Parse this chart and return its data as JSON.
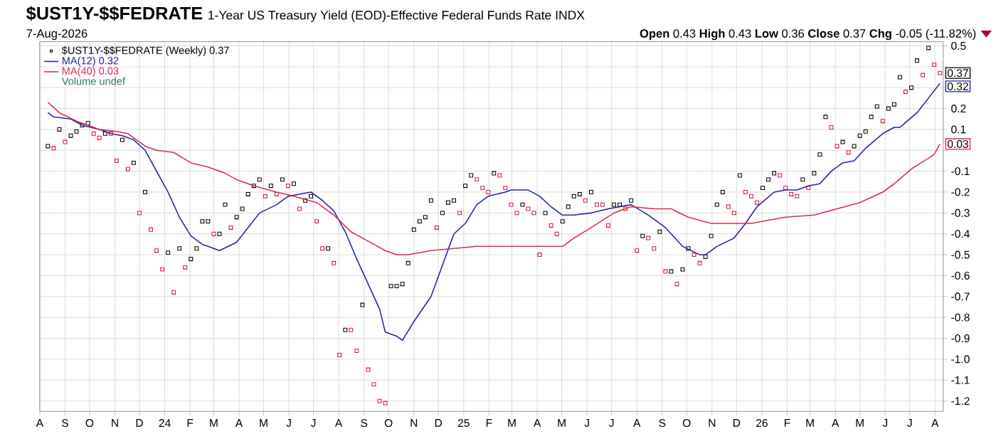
{
  "chart_data": {
    "type": "scatter",
    "title": "$UST1Y-$$FEDRATE",
    "subtitle": "1-Year US Treasury Yield (EOD)-Effective Federal Funds Rate INDX",
    "annotations": [
      "7-Aug-2026",
      "**Open** 0.43 **High** 0.43 **Low** 0.36 **Close** 0.37 **Chg** -0.05 (-11.82%)",
      "Volume undef",
      {
        "text": "0.37",
        "x": "2026-08-07",
        "y": 0.37
      },
      {
        "text": "0.32",
        "x": "2026-08-07",
        "y": 0.32
      },
      {
        "text": "0.03",
        "x": "2026-08-07",
        "y": 0.03
      }
    ],
    "x": [
      "2023-08-11",
      "2023-08-18",
      "2023-08-25",
      "2023-09-01",
      "2023-09-08",
      "2023-09-15",
      "2023-09-22",
      "2023-09-29",
      "2023-10-06",
      "2023-10-13",
      "2023-10-20",
      "2023-10-27",
      "2023-11-03",
      "2023-11-10",
      "2023-11-17",
      "2023-11-24",
      "2023-12-01",
      "2023-12-08",
      "2023-12-15",
      "2023-12-22",
      "2023-12-29",
      "2024-01-05",
      "2024-01-12",
      "2024-01-19",
      "2024-01-26",
      "2024-02-02",
      "2024-02-09",
      "2024-02-16",
      "2024-02-23",
      "2024-03-01",
      "2024-03-08",
      "2024-03-15",
      "2024-03-22",
      "2024-03-29",
      "2024-04-05",
      "2024-04-12",
      "2024-04-19",
      "2024-04-26",
      "2024-05-03",
      "2024-05-10",
      "2024-05-17",
      "2024-05-24",
      "2024-05-31",
      "2024-06-07",
      "2024-06-14",
      "2024-06-21",
      "2024-06-28",
      "2024-07-05",
      "2024-07-12",
      "2024-07-19",
      "2024-07-26",
      "2024-08-02",
      "2024-08-09",
      "2024-08-16",
      "2024-08-23",
      "2024-08-30",
      "2024-09-06",
      "2024-09-13",
      "2024-09-20",
      "2024-09-27",
      "2024-10-04",
      "2024-10-11",
      "2024-10-18",
      "2024-10-25",
      "2024-11-01",
      "2024-11-08",
      "2024-11-15",
      "2024-11-22",
      "2024-11-29",
      "2024-12-06",
      "2024-12-13",
      "2024-12-20",
      "2024-12-27",
      "2025-01-03",
      "2025-01-10",
      "2025-01-17",
      "2025-01-24",
      "2025-01-31",
      "2025-02-07",
      "2025-02-14",
      "2025-02-21",
      "2025-02-28",
      "2025-03-07",
      "2025-03-14",
      "2025-03-21",
      "2025-03-28",
      "2025-04-04",
      "2025-04-11",
      "2025-04-18",
      "2025-04-25",
      "2025-05-02",
      "2025-05-09",
      "2025-05-16",
      "2025-05-23",
      "2025-05-30",
      "2025-06-06",
      "2025-06-13",
      "2025-06-20",
      "2025-06-27",
      "2025-07-04",
      "2025-07-11",
      "2025-07-18",
      "2025-07-25",
      "2025-08-01",
      "2025-08-08",
      "2025-08-15",
      "2025-08-22",
      "2025-08-29",
      "2025-09-05",
      "2025-09-12",
      "2025-09-19",
      "2025-09-26",
      "2025-10-03",
      "2025-10-10",
      "2025-10-17",
      "2025-10-24",
      "2025-10-31",
      "2025-11-07",
      "2025-11-14",
      "2025-11-21",
      "2025-11-28",
      "2025-12-05",
      "2025-12-12",
      "2025-12-19",
      "2025-12-26",
      "2026-01-02",
      "2026-01-09",
      "2026-01-16",
      "2026-01-23",
      "2026-01-30",
      "2026-02-06",
      "2026-02-13",
      "2026-02-20",
      "2026-02-27",
      "2026-03-06",
      "2026-03-13",
      "2026-03-20",
      "2026-03-27",
      "2026-04-03",
      "2026-04-10",
      "2026-04-17",
      "2026-04-24",
      "2026-05-01",
      "2026-05-08",
      "2026-05-15",
      "2026-05-22",
      "2026-05-29",
      "2026-06-05",
      "2026-06-12",
      "2026-06-19",
      "2026-06-26",
      "2026-07-03",
      "2026-07-10",
      "2026-07-17",
      "2026-07-24",
      "2026-07-31",
      "2026-08-07"
    ],
    "series": [
      {
        "name": "$UST1Y-$$FEDRATE (Weekly) 0.37",
        "marker": "square",
        "color": "#000000",
        "values": [
          0.02,
          0.01,
          0.1,
          0.04,
          0.07,
          0.09,
          0.12,
          0.13,
          0.08,
          0.06,
          0.08,
          0.08,
          -0.05,
          0.05,
          -0.09,
          -0.06,
          -0.3,
          -0.2,
          -0.38,
          -0.48,
          -0.57,
          -0.49,
          -0.68,
          -0.47,
          -0.56,
          -0.52,
          -0.47,
          -0.34,
          -0.34,
          -0.4,
          -0.4,
          -0.26,
          -0.37,
          -0.32,
          -0.28,
          -0.21,
          -0.17,
          -0.14,
          -0.22,
          -0.17,
          -0.21,
          -0.14,
          -0.17,
          -0.16,
          -0.28,
          -0.24,
          -0.22,
          -0.34,
          -0.47,
          -0.47,
          -0.54,
          -0.98,
          -0.86,
          -0.86,
          -0.96,
          -0.74,
          -1.05,
          -1.12,
          -1.2,
          -1.21,
          -0.65,
          -0.65,
          -0.64,
          -0.54,
          -0.38,
          -0.34,
          -0.32,
          -0.24,
          -0.37,
          -0.3,
          -0.25,
          -0.24,
          -0.3,
          -0.17,
          -0.12,
          -0.14,
          -0.18,
          -0.2,
          -0.11,
          -0.12,
          -0.18,
          -0.26,
          -0.3,
          -0.26,
          -0.28,
          -0.3,
          -0.5,
          -0.3,
          -0.36,
          -0.4,
          -0.34,
          -0.27,
          -0.22,
          -0.21,
          -0.24,
          -0.2,
          -0.26,
          -0.26,
          -0.36,
          -0.26,
          -0.26,
          -0.28,
          -0.24,
          -0.48,
          -0.41,
          -0.42,
          -0.47,
          -0.39,
          -0.58,
          -0.58,
          -0.64,
          -0.57,
          -0.47,
          -0.5,
          -0.54,
          -0.51,
          -0.41,
          -0.26,
          -0.2,
          -0.27,
          -0.3,
          -0.12,
          -0.2,
          -0.22,
          -0.25,
          -0.18,
          -0.14,
          -0.11,
          -0.12,
          -0.18,
          -0.21,
          -0.22,
          -0.14,
          -0.18,
          -0.11,
          -0.02,
          0.16,
          0.11,
          0.02,
          0.04,
          -0.01,
          0.02,
          0.07,
          0.09,
          0.16,
          0.21,
          0.14,
          0.2,
          0.22,
          0.35,
          0.28,
          0.3,
          0.43,
          0.36,
          0.49,
          0.41,
          0.37
        ],
        "colors": [
          "#000000",
          "#dc143c",
          "#000000",
          "#dc143c",
          "#000000",
          "#000000",
          "#000000",
          "#000000",
          "#dc143c",
          "#dc143c",
          "#000000",
          "#dc143c",
          "#dc143c",
          "#000000",
          "#dc143c",
          "#000000",
          "#dc143c",
          "#000000",
          "#dc143c",
          "#dc143c",
          "#dc143c",
          "#000000",
          "#dc143c",
          "#000000",
          "#dc143c",
          "#000000",
          "#000000",
          "#000000",
          "#000000",
          "#dc143c",
          "#000000",
          "#000000",
          "#dc143c",
          "#000000",
          "#000000",
          "#000000",
          "#000000",
          "#000000",
          "#dc143c",
          "#000000",
          "#dc143c",
          "#000000",
          "#dc143c",
          "#000000",
          "#dc143c",
          "#000000",
          "#000000",
          "#dc143c",
          "#dc143c",
          "#000000",
          "#dc143c",
          "#dc143c",
          "#000000",
          "#dc143c",
          "#dc143c",
          "#000000",
          "#dc143c",
          "#dc143c",
          "#dc143c",
          "#dc143c",
          "#000000",
          "#000000",
          "#000000",
          "#000000",
          "#000000",
          "#000000",
          "#000000",
          "#000000",
          "#dc143c",
          "#000000",
          "#000000",
          "#000000",
          "#dc143c",
          "#000000",
          "#000000",
          "#dc143c",
          "#dc143c",
          "#dc143c",
          "#000000",
          "#dc143c",
          "#dc143c",
          "#dc143c",
          "#dc143c",
          "#000000",
          "#dc143c",
          "#dc143c",
          "#dc143c",
          "#000000",
          "#dc143c",
          "#dc143c",
          "#000000",
          "#000000",
          "#000000",
          "#000000",
          "#dc143c",
          "#000000",
          "#dc143c",
          "#dc143c",
          "#dc143c",
          "#000000",
          "#000000",
          "#dc143c",
          "#000000",
          "#dc143c",
          "#000000",
          "#dc143c",
          "#dc143c",
          "#000000",
          "#dc143c",
          "#000000",
          "#dc143c",
          "#000000",
          "#000000",
          "#dc143c",
          "#dc143c",
          "#000000",
          "#000000",
          "#000000",
          "#000000",
          "#dc143c",
          "#dc143c",
          "#000000",
          "#dc143c",
          "#dc143c",
          "#dc143c",
          "#000000",
          "#000000",
          "#000000",
          "#dc143c",
          "#dc143c",
          "#dc143c",
          "#dc143c",
          "#000000",
          "#dc143c",
          "#000000",
          "#000000",
          "#000000",
          "#dc143c",
          "#dc143c",
          "#000000",
          "#dc143c",
          "#000000",
          "#000000",
          "#000000",
          "#000000",
          "#000000",
          "#dc143c",
          "#000000",
          "#000000",
          "#000000",
          "#dc143c",
          "#000000",
          "#000000",
          "#dc143c",
          "#000000",
          "#dc143c",
          "#dc143c"
        ]
      },
      {
        "name": "MA(12) 0.32",
        "type": "line",
        "color": "#2424a0",
        "x": [
          "2023-08-11",
          "2023-08-18",
          "2023-09-08",
          "2023-09-22",
          "2023-10-13",
          "2023-10-27",
          "2023-11-10",
          "2023-11-24",
          "2023-12-08",
          "2023-12-22",
          "2024-01-05",
          "2024-01-19",
          "2024-02-02",
          "2024-02-16",
          "2024-02-23",
          "2024-03-08",
          "2024-03-29",
          "2024-04-12",
          "2024-04-26",
          "2024-05-17",
          "2024-05-31",
          "2024-06-14",
          "2024-06-28",
          "2024-07-12",
          "2024-07-26",
          "2024-08-09",
          "2024-08-23",
          "2024-09-06",
          "2024-09-20",
          "2024-09-27",
          "2024-10-11",
          "2024-10-18",
          "2024-11-01",
          "2024-11-22",
          "2024-12-06",
          "2024-12-20",
          "2025-01-03",
          "2025-01-17",
          "2025-01-31",
          "2025-02-21",
          "2025-02-28",
          "2025-03-21",
          "2025-04-04",
          "2025-04-18",
          "2025-05-02",
          "2025-05-16",
          "2025-06-06",
          "2025-06-27",
          "2025-07-25",
          "2025-08-15",
          "2025-09-05",
          "2025-09-26",
          "2025-10-17",
          "2025-10-24",
          "2025-11-07",
          "2025-11-28",
          "2025-12-12",
          "2025-12-26",
          "2026-01-16",
          "2026-01-30",
          "2026-02-13",
          "2026-02-27",
          "2026-03-13",
          "2026-03-27",
          "2026-04-10",
          "2026-04-24",
          "2026-05-08",
          "2026-05-29",
          "2026-06-12",
          "2026-06-19",
          "2026-07-10",
          "2026-07-24",
          "2026-08-07"
        ],
        "values": [
          0.18,
          0.16,
          0.15,
          0.12,
          0.1,
          0.08,
          0.07,
          0.05,
          0.0,
          -0.1,
          -0.2,
          -0.32,
          -0.41,
          -0.45,
          -0.46,
          -0.48,
          -0.44,
          -0.37,
          -0.3,
          -0.26,
          -0.22,
          -0.21,
          -0.2,
          -0.24,
          -0.29,
          -0.39,
          -0.52,
          -0.64,
          -0.76,
          -0.87,
          -0.89,
          -0.91,
          -0.82,
          -0.7,
          -0.55,
          -0.4,
          -0.35,
          -0.26,
          -0.22,
          -0.2,
          -0.19,
          -0.19,
          -0.22,
          -0.27,
          -0.31,
          -0.31,
          -0.3,
          -0.28,
          -0.26,
          -0.31,
          -0.37,
          -0.46,
          -0.5,
          -0.5,
          -0.46,
          -0.42,
          -0.35,
          -0.27,
          -0.2,
          -0.19,
          -0.19,
          -0.17,
          -0.16,
          -0.1,
          -0.06,
          -0.05,
          0.01,
          0.08,
          0.11,
          0.11,
          0.18,
          0.25,
          0.32
        ]
      },
      {
        "name": "MA(40) 0.03",
        "type": "line",
        "color": "#e0284f",
        "x": [
          "2023-08-11",
          "2023-08-25",
          "2023-09-15",
          "2023-09-29",
          "2023-10-13",
          "2023-11-03",
          "2023-11-17",
          "2023-12-01",
          "2023-12-08",
          "2023-12-22",
          "2024-01-12",
          "2024-02-02",
          "2024-02-23",
          "2024-03-15",
          "2024-03-29",
          "2024-04-19",
          "2024-05-17",
          "2024-06-07",
          "2024-07-05",
          "2024-07-26",
          "2024-08-16",
          "2024-09-13",
          "2024-09-27",
          "2024-10-11",
          "2024-10-25",
          "2024-11-22",
          "2024-12-20",
          "2025-01-17",
          "2025-02-28",
          "2025-04-04",
          "2025-05-02",
          "2025-05-16",
          "2025-06-06",
          "2025-07-04",
          "2025-07-25",
          "2025-08-22",
          "2025-09-12",
          "2025-10-03",
          "2025-10-31",
          "2025-11-28",
          "2025-12-19",
          "2026-01-02",
          "2026-01-30",
          "2026-03-06",
          "2026-04-03",
          "2026-05-01",
          "2026-05-29",
          "2026-06-12",
          "2026-07-03",
          "2026-07-31",
          "2026-08-07"
        ],
        "values": [
          0.23,
          0.18,
          0.14,
          0.12,
          0.1,
          0.09,
          0.08,
          0.04,
          0.02,
          0.0,
          -0.01,
          -0.06,
          -0.08,
          -0.11,
          -0.14,
          -0.17,
          -0.2,
          -0.22,
          -0.25,
          -0.31,
          -0.39,
          -0.45,
          -0.48,
          -0.5,
          -0.5,
          -0.48,
          -0.47,
          -0.46,
          -0.46,
          -0.46,
          -0.46,
          -0.42,
          -0.37,
          -0.3,
          -0.27,
          -0.28,
          -0.28,
          -0.32,
          -0.35,
          -0.35,
          -0.35,
          -0.34,
          -0.32,
          -0.31,
          -0.28,
          -0.25,
          -0.2,
          -0.16,
          -0.09,
          -0.02,
          0.03
        ]
      }
    ],
    "xlim": [
      "2023-08-01",
      "2026-08-11"
    ],
    "xticks": [
      {
        "value": "2023-08-01",
        "label": "A"
      },
      {
        "value": "2023-09-01",
        "label": "S"
      },
      {
        "value": "2023-10-01",
        "label": "O"
      },
      {
        "value": "2023-11-01",
        "label": "N"
      },
      {
        "value": "2023-12-01",
        "label": "D"
      },
      {
        "value": "2024-01-01",
        "label": "24"
      },
      {
        "value": "2024-02-01",
        "label": "F"
      },
      {
        "value": "2024-03-01",
        "label": "M"
      },
      {
        "value": "2024-04-01",
        "label": "A"
      },
      {
        "value": "2024-05-01",
        "label": "M"
      },
      {
        "value": "2024-06-01",
        "label": "J"
      },
      {
        "value": "2024-07-01",
        "label": "J"
      },
      {
        "value": "2024-08-01",
        "label": "A"
      },
      {
        "value": "2024-09-01",
        "label": "S"
      },
      {
        "value": "2024-10-01",
        "label": "O"
      },
      {
        "value": "2024-11-01",
        "label": "N"
      },
      {
        "value": "2024-12-01",
        "label": "D"
      },
      {
        "value": "2025-01-01",
        "label": "25"
      },
      {
        "value": "2025-02-01",
        "label": "F"
      },
      {
        "value": "2025-03-01",
        "label": "M"
      },
      {
        "value": "2025-04-01",
        "label": "A"
      },
      {
        "value": "2025-05-01",
        "label": "M"
      },
      {
        "value": "2025-06-01",
        "label": "J"
      },
      {
        "value": "2025-07-01",
        "label": "J"
      },
      {
        "value": "2025-08-01",
        "label": "A"
      },
      {
        "value": "2025-09-01",
        "label": "S"
      },
      {
        "value": "2025-10-01",
        "label": "O"
      },
      {
        "value": "2025-11-01",
        "label": "N"
      },
      {
        "value": "2025-12-01",
        "label": "D"
      },
      {
        "value": "2026-01-01",
        "label": "26"
      },
      {
        "value": "2026-02-01",
        "label": "F"
      },
      {
        "value": "2026-03-01",
        "label": "M"
      },
      {
        "value": "2026-04-01",
        "label": "A"
      },
      {
        "value": "2026-05-01",
        "label": "M"
      },
      {
        "value": "2026-06-01",
        "label": "J"
      },
      {
        "value": "2026-07-01",
        "label": "J"
      },
      {
        "value": "2026-08-01",
        "label": "A"
      }
    ],
    "ylim": [
      -1.25,
      0.52
    ],
    "yticks": [
      0.5,
      {
        "value": 0.4,
        "label": null
      },
      {
        "value": 0.3,
        "label": null
      },
      0.2,
      0.1,
      {
        "value": 0,
        "label": null
      },
      -0.1,
      -0.2,
      -0.3,
      -0.4,
      -0.5,
      -0.6,
      -0.7,
      -0.8,
      -0.9,
      {
        "value": -1,
        "label": "-1.0"
      },
      -1.1,
      -1.2
    ],
    "grid": true,
    "legend": "top left"
  }
}
